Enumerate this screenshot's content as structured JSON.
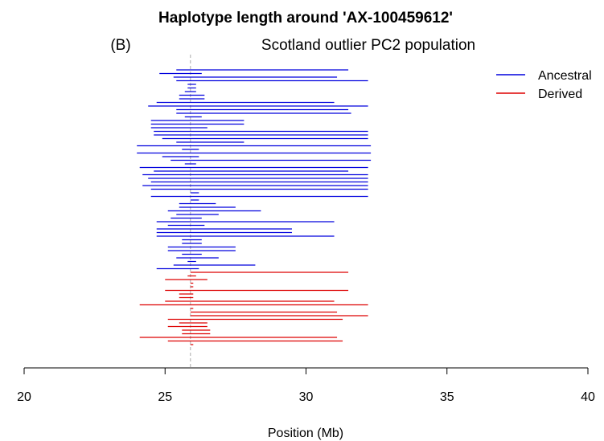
{
  "chart_data": {
    "type": "line",
    "title": "Haplotype length around 'AX-100459612'",
    "panel_label": "(B)",
    "subtitle": "Scotland outlier PC2 population",
    "xlabel": "Position (Mb)",
    "ylabel": "",
    "xlim": [
      20,
      40
    ],
    "xticks": [
      20,
      25,
      30,
      35,
      40
    ],
    "tick_labels": [
      "20",
      "25",
      "30",
      "35",
      "40"
    ],
    "marker_position": 25.9,
    "legend_position": "top-right",
    "colors": {
      "Ancestral": "#0000dd",
      "Derived": "#dd0000",
      "marker": "#aaaaaa"
    },
    "series": [
      {
        "name": "Ancestral",
        "segments": [
          [
            25.4,
            31.5
          ],
          [
            24.8,
            26.3
          ],
          [
            25.3,
            31.1
          ],
          [
            25.4,
            32.2
          ],
          [
            25.8,
            26.1
          ],
          [
            25.8,
            26.1
          ],
          [
            25.7,
            26.1
          ],
          [
            25.5,
            26.4
          ],
          [
            25.5,
            26.4
          ],
          [
            24.7,
            31.0
          ],
          [
            24.4,
            32.2
          ],
          [
            25.4,
            31.5
          ],
          [
            25.4,
            31.6
          ],
          [
            25.7,
            26.3
          ],
          [
            24.5,
            27.8
          ],
          [
            24.5,
            27.8
          ],
          [
            24.5,
            26.5
          ],
          [
            24.6,
            32.2
          ],
          [
            24.6,
            32.2
          ],
          [
            24.9,
            32.2
          ],
          [
            25.4,
            27.8
          ],
          [
            24.0,
            32.3
          ],
          [
            25.6,
            26.2
          ],
          [
            24.0,
            32.3
          ],
          [
            24.9,
            26.2
          ],
          [
            25.2,
            32.3
          ],
          [
            25.7,
            26.1
          ],
          [
            24.1,
            32.2
          ],
          [
            24.6,
            31.5
          ],
          [
            24.2,
            32.2
          ],
          [
            24.4,
            32.2
          ],
          [
            24.5,
            32.2
          ],
          [
            24.2,
            32.2
          ],
          [
            24.5,
            32.2
          ],
          [
            25.9,
            26.2
          ],
          [
            24.5,
            32.2
          ],
          [
            25.9,
            26.2
          ],
          [
            25.5,
            26.8
          ],
          [
            25.5,
            27.5
          ],
          [
            25.1,
            28.4
          ],
          [
            25.4,
            26.9
          ],
          [
            25.2,
            26.3
          ],
          [
            24.7,
            31.0
          ],
          [
            25.1,
            26.4
          ],
          [
            24.7,
            29.5
          ],
          [
            24.7,
            29.5
          ],
          [
            24.7,
            31.0
          ],
          [
            25.6,
            26.3
          ],
          [
            25.6,
            26.3
          ],
          [
            25.1,
            27.5
          ],
          [
            25.1,
            27.5
          ],
          [
            25.6,
            26.3
          ],
          [
            25.4,
            26.9
          ],
          [
            25.8,
            26.1
          ],
          [
            25.3,
            28.2
          ],
          [
            24.7,
            26.2
          ]
        ]
      },
      {
        "name": "Derived",
        "segments": [
          [
            25.9,
            31.5
          ],
          [
            25.8,
            26.1
          ],
          [
            25.0,
            26.5
          ],
          [
            25.9,
            26.0
          ],
          [
            25.9,
            26.0
          ],
          [
            25.0,
            31.5
          ],
          [
            25.5,
            26.0
          ],
          [
            25.5,
            26.0
          ],
          [
            25.0,
            31.0
          ],
          [
            24.1,
            32.2
          ],
          [
            25.9,
            26.0
          ],
          [
            25.9,
            31.1
          ],
          [
            25.9,
            32.2
          ],
          [
            25.1,
            31.3
          ],
          [
            25.5,
            26.5
          ],
          [
            25.1,
            26.5
          ],
          [
            25.6,
            26.6
          ],
          [
            25.6,
            26.6
          ],
          [
            24.1,
            31.1
          ],
          [
            25.1,
            31.3
          ],
          [
            25.9,
            26.0
          ]
        ]
      }
    ]
  }
}
